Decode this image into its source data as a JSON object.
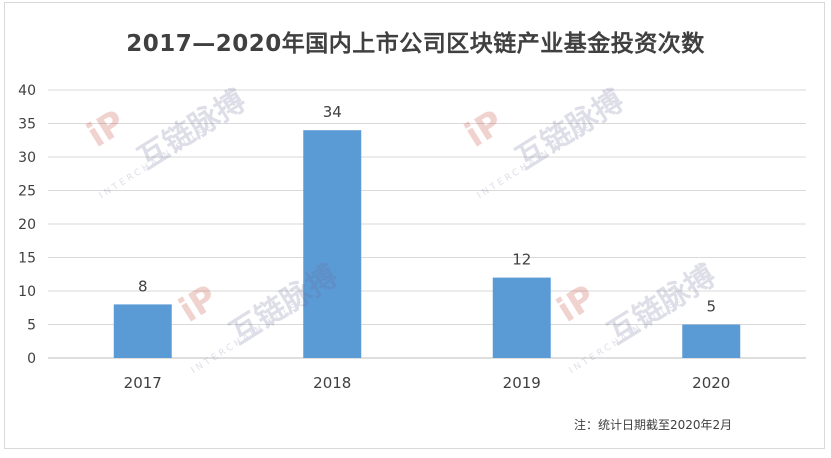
{
  "title": "2017—2020年国内上市公司区块链产业基金投资次数",
  "note": "注：统计日期截至2020年2月",
  "watermark": {
    "brand": "互链脉搏",
    "sub": "INTERCHAIN PULSE"
  },
  "colors": {
    "bar": "#5b9bd5",
    "grid": "#d9d9d9",
    "text": "#404040"
  },
  "chart_data": {
    "type": "bar",
    "title": "2017—2020年国内上市公司区块链产业基金投资次数",
    "xlabel": "",
    "ylabel": "",
    "categories": [
      "2017",
      "2018",
      "2019",
      "2020"
    ],
    "values": [
      8,
      34,
      12,
      5
    ],
    "ylim": [
      0,
      40
    ],
    "yticks": [
      0,
      5,
      10,
      15,
      20,
      25,
      30,
      35,
      40
    ],
    "grid": true,
    "legend": "none",
    "data_labels": true
  }
}
